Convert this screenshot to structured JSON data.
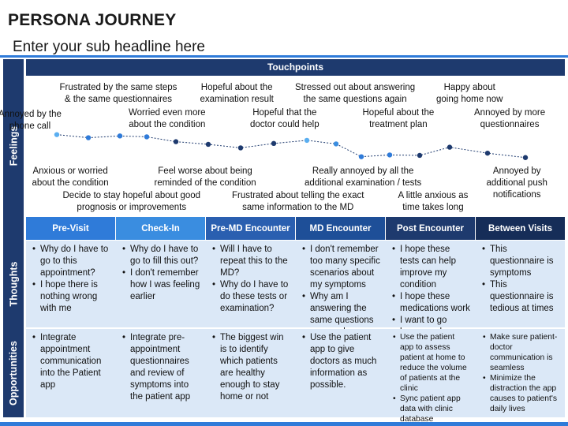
{
  "header": {
    "title": "PERSONA JOURNEY",
    "subtitle": "Enter your sub headline here"
  },
  "touchpoints_label": "Touchpoints",
  "side_labels": {
    "feelings": "Feelings",
    "thoughts": "Thoughts",
    "opportunities": "Opportunities"
  },
  "feelings_above": [
    {
      "text": "Annoyed by the\nphone call"
    },
    {
      "text": "Frustrated by the same steps\n& the same questionnaires"
    },
    {
      "text": "Worried even more\nabout the condition"
    },
    {
      "text": "Hopeful about the\nexamination result"
    },
    {
      "text": "Hopeful that the\ndoctor could help"
    },
    {
      "text": "Stressed out about answering\nthe same questions again"
    },
    {
      "text": "Hopeful about the\ntreatment plan"
    },
    {
      "text": "Happy about\ngoing home now"
    },
    {
      "text": "Annoyed by more\nquestionnaires"
    }
  ],
  "feelings_below": [
    {
      "text": "Anxious or worried\nabout the condition"
    },
    {
      "text": "Decide to stay hopeful about good\nprognosis or improvements"
    },
    {
      "text": "Feel worse about being\nreminded of the condition"
    },
    {
      "text": "Frustrated about telling the exact\nsame information to the MD"
    },
    {
      "text": "Really annoyed by all the\nadditional examination / tests"
    },
    {
      "text": "A little anxious as\ntime takes long"
    },
    {
      "text": "Annoyed by\nadditional push\nnotifications"
    }
  ],
  "feeling_points": [
    {
      "level": 0.62,
      "color": "#5aaef0"
    },
    {
      "level": 0.48,
      "color": "#2f7bd9"
    },
    {
      "level": 0.56,
      "color": "#2f7bd9"
    },
    {
      "level": 0.52,
      "color": "#2f7bd9"
    },
    {
      "level": 0.3,
      "color": "#1e3a6e"
    },
    {
      "level": 0.18,
      "color": "#1e3a6e"
    },
    {
      "level": 0.02,
      "color": "#1e3a6e"
    },
    {
      "level": 0.22,
      "color": "#1e3a6e"
    },
    {
      "level": 0.36,
      "color": "#5aaef0"
    },
    {
      "level": 0.2,
      "color": "#3a8de0"
    },
    {
      "level": -0.38,
      "color": "#2f7bd9"
    },
    {
      "level": -0.3,
      "color": "#2f7bd9"
    },
    {
      "level": -0.32,
      "color": "#1e3a6e"
    },
    {
      "level": 0.05,
      "color": "#1e3a6e"
    },
    {
      "level": -0.22,
      "color": "#1e3a6e"
    },
    {
      "level": -0.42,
      "color": "#1e3a6e"
    }
  ],
  "stages": [
    {
      "label": "Pre-Visit",
      "color": "#2f7bd9"
    },
    {
      "label": "Check-In",
      "color": "#3a8de0"
    },
    {
      "label": "Pre-MD Encounter",
      "color": "#2a5fb0"
    },
    {
      "label": "MD Encounter",
      "color": "#1e4f98"
    },
    {
      "label": "Post Encounter",
      "color": "#1e3a6e"
    },
    {
      "label": "Between Visits",
      "color": "#162d58"
    }
  ],
  "thoughts": [
    [
      "Why do I have to go to this appointment?",
      "I hope there is nothing wrong with me"
    ],
    [
      "Why do I have to go to fill this out?",
      "I don't remember how I was feeling earlier"
    ],
    [
      "Will I have to repeat this to the MD?",
      "Why do I have to do these tests or examination?"
    ],
    [
      "I don't remember too many specific scenarios about my symptoms",
      "Why am I answering the same questions over and over again?"
    ],
    [
      "I hope these tests can help improve my condition",
      "I hope these medications work",
      "I want to go home work"
    ],
    [
      "This questionnaire is symptoms",
      "This questionnaire is tedious at times"
    ]
  ],
  "opportunities": [
    [
      "Integrate appointment communication into the Patient app"
    ],
    [
      "Integrate pre-appointment questionnaires and review of symptoms into the patient app"
    ],
    [
      "The biggest win is to identify which patients are healthy enough to stay home or not"
    ],
    [
      "Use the patient app to give doctors as much information as possible."
    ],
    [
      "Use the patient app to assess patient at home to reduce the volume of patients at the clinic",
      "Sync patient app data with clinic database"
    ],
    [
      "Make sure patient-doctor communication is seamless",
      "Minimize the distraction the app causes to patient's daily lives"
    ]
  ]
}
